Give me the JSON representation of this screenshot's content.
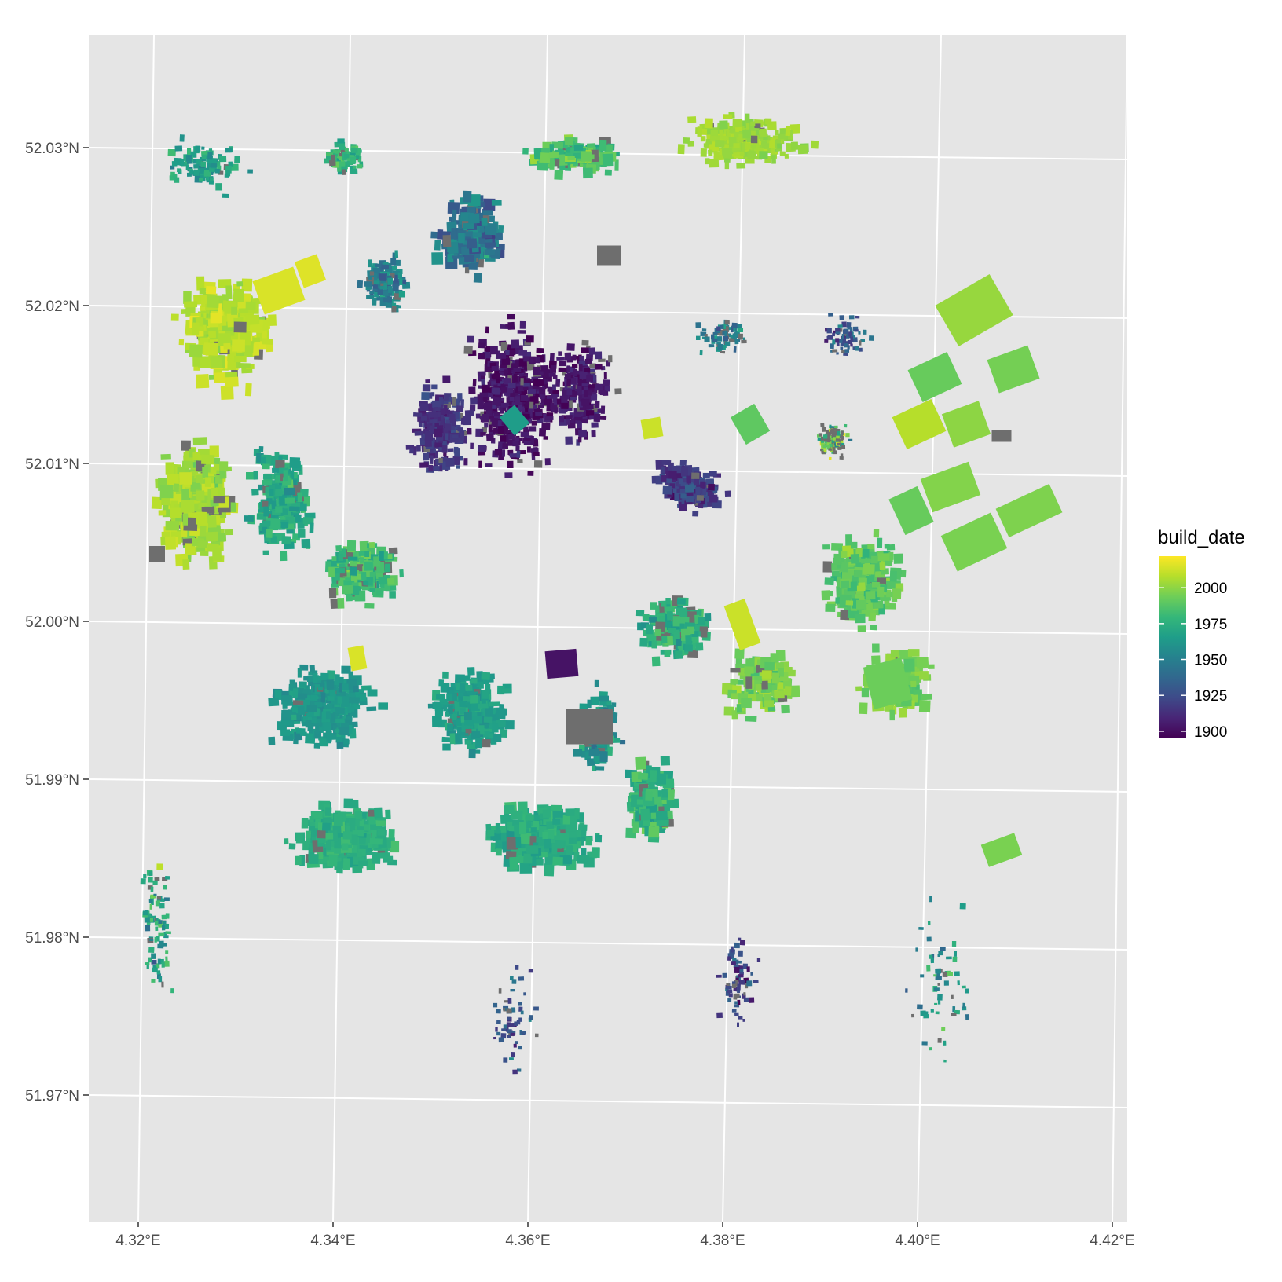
{
  "chart_data": {
    "type": "map",
    "geometry": "building footprints",
    "background_color": "#e5e5e5",
    "grid": true,
    "grid_color": "#ffffff",
    "missing_color": "#6e6e6e",
    "x_ticks": [
      "4.32°E",
      "4.34°E",
      "4.36°E",
      "4.38°E",
      "4.40°E",
      "4.42°E"
    ],
    "y_ticks": [
      "52.03°N",
      "52.02°N",
      "52.01°N",
      "52.00°N",
      "51.99°N",
      "51.98°N",
      "51.97°N"
    ],
    "x_range": [
      4.315,
      4.42
    ],
    "y_range": [
      51.962,
      52.037
    ],
    "legend": {
      "title": "build_date",
      "position": "right",
      "type": "colorbar",
      "palette": "viridis",
      "range": [
        1895,
        2022
      ],
      "breaks": [
        2000,
        1975,
        1950,
        1925,
        1900
      ],
      "colors": [
        "#440154",
        "#482576",
        "#3e4a89",
        "#31688e",
        "#26828e",
        "#1f9e89",
        "#35b779",
        "#6ece58",
        "#b5de2b",
        "#fde725"
      ]
    }
  }
}
